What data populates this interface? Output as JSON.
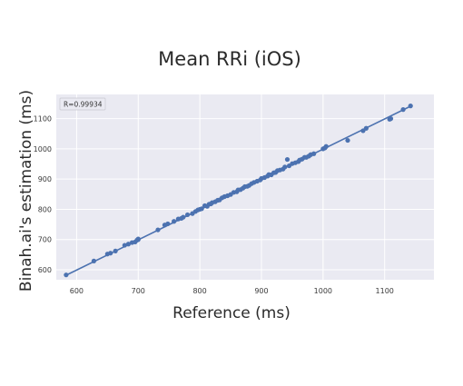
{
  "chart_data": {
    "type": "scatter",
    "title": "Mean RRi (iOS)",
    "xlabel": "Reference (ms)",
    "ylabel": "Binah.ai's estimation (ms)",
    "annotation": "R=0.99934",
    "xlim": [
      567,
      1180
    ],
    "ylim": [
      567,
      1180
    ],
    "xticks": [
      600,
      700,
      800,
      900,
      1000,
      1100
    ],
    "yticks": [
      600,
      700,
      800,
      900,
      1000,
      1100
    ],
    "ytick_labels": [
      "600",
      "700",
      "800",
      "900",
      "1000",
      "1100"
    ],
    "grid": true,
    "colors": {
      "background": "#eaeaf2",
      "grid": "#ffffff",
      "points": "#4c72b0",
      "line": "#4c72b0"
    },
    "fit_line": {
      "x": [
        583,
        1143
      ],
      "y": [
        582,
        1142
      ]
    },
    "points": [
      [
        583,
        583
      ],
      [
        628,
        629
      ],
      [
        650,
        652
      ],
      [
        655,
        655
      ],
      [
        663,
        662
      ],
      [
        678,
        681
      ],
      [
        684,
        685
      ],
      [
        690,
        690
      ],
      [
        695,
        692
      ],
      [
        698,
        698
      ],
      [
        700,
        702
      ],
      [
        700,
        700
      ],
      [
        732,
        732
      ],
      [
        743,
        748
      ],
      [
        748,
        752
      ],
      [
        758,
        760
      ],
      [
        765,
        768
      ],
      [
        770,
        770
      ],
      [
        773,
        774
      ],
      [
        780,
        782
      ],
      [
        788,
        786
      ],
      [
        793,
        793
      ],
      [
        797,
        798
      ],
      [
        800,
        800
      ],
      [
        803,
        802
      ],
      [
        808,
        812
      ],
      [
        812,
        810
      ],
      [
        815,
        817
      ],
      [
        818,
        818
      ],
      [
        820,
        822
      ],
      [
        825,
        825
      ],
      [
        829,
        830
      ],
      [
        832,
        831
      ],
      [
        836,
        838
      ],
      [
        840,
        842
      ],
      [
        845,
        845
      ],
      [
        850,
        849
      ],
      [
        855,
        856
      ],
      [
        860,
        858
      ],
      [
        862,
        864
      ],
      [
        866,
        865
      ],
      [
        870,
        870
      ],
      [
        873,
        875
      ],
      [
        877,
        876
      ],
      [
        880,
        879
      ],
      [
        884,
        885
      ],
      [
        888,
        889
      ],
      [
        893,
        893
      ],
      [
        898,
        897
      ],
      [
        900,
        902
      ],
      [
        905,
        905
      ],
      [
        910,
        910
      ],
      [
        912,
        915
      ],
      [
        916,
        914
      ],
      [
        920,
        921
      ],
      [
        923,
        922
      ],
      [
        926,
        928
      ],
      [
        930,
        930
      ],
      [
        935,
        933
      ],
      [
        938,
        940
      ],
      [
        942,
        965
      ],
      [
        945,
        944
      ],
      [
        950,
        951
      ],
      [
        955,
        954
      ],
      [
        960,
        958
      ],
      [
        962,
        963
      ],
      [
        966,
        966
      ],
      [
        970,
        972
      ],
      [
        973,
        972
      ],
      [
        977,
        976
      ],
      [
        980,
        981
      ],
      [
        985,
        984
      ],
      [
        1000,
        1000
      ],
      [
        1003,
        1003
      ],
      [
        1005,
        1008
      ],
      [
        1040,
        1028
      ],
      [
        1065,
        1060
      ],
      [
        1070,
        1068
      ],
      [
        1108,
        1098
      ],
      [
        1110,
        1100
      ],
      [
        1130,
        1130
      ],
      [
        1142,
        1142
      ]
    ]
  }
}
